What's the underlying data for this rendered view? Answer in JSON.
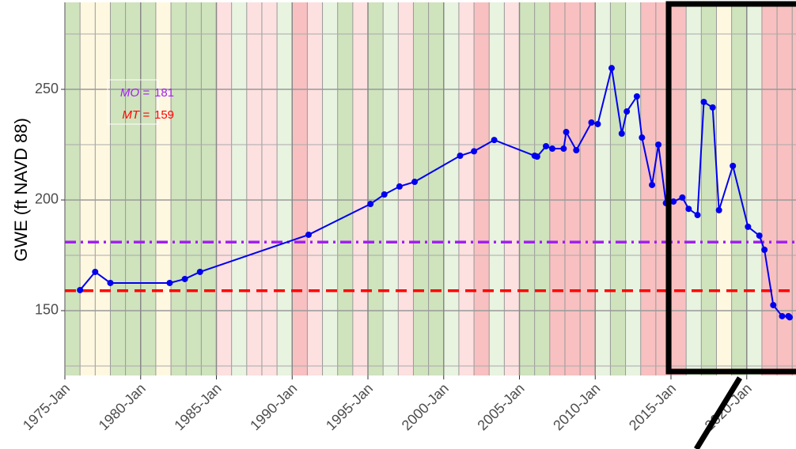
{
  "chart_data": {
    "type": "line",
    "y_label": "GWE (ft NAVD 88)",
    "x": [
      "1976-01",
      "1977-01",
      "1978-01",
      "1981-12",
      "1982-12",
      "1983-12",
      "1991-02",
      "1995-03",
      "1996-02",
      "1997-02",
      "1998-02",
      "2001-02",
      "2002-01",
      "2003-05",
      "2006-01",
      "2006-03",
      "2006-10",
      "2007-03",
      "2007-12",
      "2008-02",
      "2008-10",
      "2009-10",
      "2010-03",
      "2011-02",
      "2011-10",
      "2012-02",
      "2012-10",
      "2013-02",
      "2013-10",
      "2014-03",
      "2014-09",
      "2015-03",
      "2015-10",
      "2016-03",
      "2016-10",
      "2017-03",
      "2017-10",
      "2018-03",
      "2019-02",
      "2020-02",
      "2020-11",
      "2021-03",
      "2021-10",
      "2022-05",
      "2022-10",
      "2022-11"
    ],
    "series": [
      {
        "name": "GWE",
        "color": "#0000ee",
        "values": [
          159.3,
          167.5,
          162.5,
          162.5,
          164.3,
          167.5,
          184.3,
          198.2,
          202.5,
          206.1,
          208.2,
          220,
          222,
          227.1,
          220,
          219.6,
          224.3,
          223.2,
          223.2,
          230.7,
          222.5,
          235,
          234.3,
          259.6,
          230,
          240,
          246.8,
          228.2,
          206.8,
          225,
          198.6,
          199.3,
          201.1,
          196,
          193.2,
          244.3,
          241.8,
          195.4,
          215.4,
          187.9,
          183.9,
          177.5,
          152.5,
          147.5,
          147.5,
          147
        ]
      }
    ],
    "thresholds": [
      {
        "label": "MO =",
        "value": 181,
        "color": "#a020f0",
        "dash": "14 6 3 6"
      },
      {
        "label": "MT =",
        "value": 159,
        "color": "#ff0000",
        "dash": "14 8"
      }
    ],
    "xlim": [
      "1975-01",
      "2023-04"
    ],
    "xticks": [
      {
        "value": "1975-01",
        "label": "1975-Jan"
      },
      {
        "value": "1980-01",
        "label": "1980-Jan"
      },
      {
        "value": "1985-01",
        "label": "1985-Jan"
      },
      {
        "value": "1990-01",
        "label": "1990-Jan"
      },
      {
        "value": "1995-01",
        "label": "1995-Jan"
      },
      {
        "value": "2000-01",
        "label": "2000-Jan"
      },
      {
        "value": "2005-01",
        "label": "2005-Jan"
      },
      {
        "value": "2010-01",
        "label": "2010-Jan"
      },
      {
        "value": "2015-01",
        "label": "2015-Jan"
      },
      {
        "value": "2020-01",
        "label": "2020-Jan"
      }
    ],
    "ylim": [
      120.7,
      289.3
    ],
    "yticks": [
      150,
      200,
      250
    ],
    "y_minor_ticks": [
      125,
      175,
      225,
      275
    ],
    "grid": true,
    "year_band_start": 1975,
    "year_band_colors": [
      "#cfe3bd",
      "#fff8e0",
      "#fff8e0",
      "#cfe3bd",
      "#cfe3bd",
      "#cfe3bd",
      "#fff8e0",
      "#cfe3bd",
      "#cfe3bd",
      "#cfe3bd",
      "#fde0e0",
      "#e8f3e0",
      "#fde0e0",
      "#fde0e0",
      "#e8f3e0",
      "#f8c0c0",
      "#fde0e0",
      "#e8f3e0",
      "#cfe3bd",
      "#fde0e0",
      "#cfe3bd",
      "#e8f3e0",
      "#fde0e0",
      "#cfe3bd",
      "#cfe3bd",
      "#e8f3e0",
      "#fde0e0",
      "#f8c0c0",
      "#e8f3e0",
      "#fde0e0",
      "#cfe3bd",
      "#cfe3bd",
      "#f8c0c0",
      "#f8c0c0",
      "#f8c0c0",
      "#e8f3e0",
      "#cfe3bd",
      "#e8f3e0",
      "#f8c0c0",
      "#f8c0c0",
      "#f8c0c0",
      "#e8f3e0",
      "#cfe3bd",
      "#fff8e0",
      "#cfe3bd",
      "#e8f3e0",
      "#f8c0c0",
      "#f8c0c0",
      "#f8c0c0"
    ]
  }
}
